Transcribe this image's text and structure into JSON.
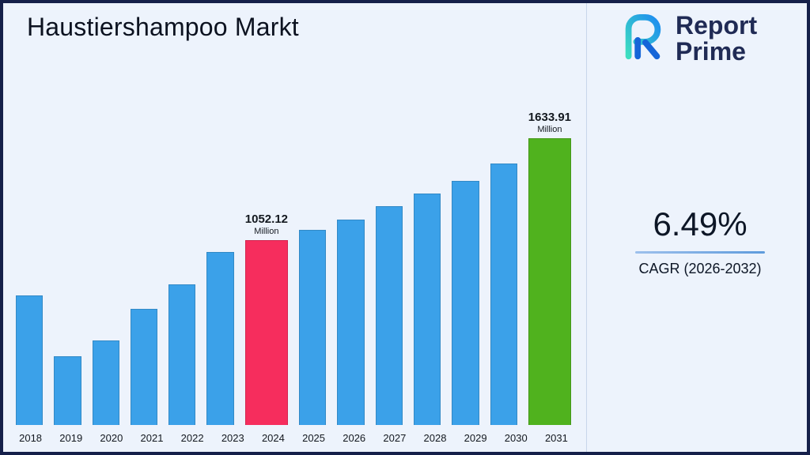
{
  "page": {
    "title": "Haustiershampoo Markt"
  },
  "logo": {
    "line1": "Report",
    "line2": "Prime",
    "icon": "report-prime-mark",
    "colors": {
      "teal": "#3ddec0",
      "blue": "#1e8cf0",
      "dark_blue": "#1565d8",
      "text": "#202b55"
    }
  },
  "stats": {
    "cagr_value": "6.49%",
    "cagr_label": "CAGR (2026-2032)"
  },
  "chart_data": {
    "type": "bar",
    "title": "Haustiershampoo Markt",
    "xlabel": "",
    "ylabel": "",
    "unit": "Million",
    "categories": [
      "2018",
      "2019",
      "2020",
      "2021",
      "2022",
      "2023",
      "2024",
      "2025",
      "2026",
      "2027",
      "2028",
      "2029",
      "2030",
      "2031"
    ],
    "values": [
      740,
      390,
      480,
      660,
      800,
      985,
      1052.12,
      1110,
      1170,
      1245,
      1320,
      1390,
      1490,
      1633.91
    ],
    "ylim": [
      0,
      1700
    ],
    "grid": false,
    "legend": "none",
    "colors": {
      "default": "#3BA1E9",
      "2024": "#F62D5D",
      "2031": "#50B21E"
    },
    "annotations": [
      {
        "category": "2024",
        "value": "1052.12",
        "unit": "Million"
      },
      {
        "category": "2031",
        "value": "1633.91",
        "unit": "Million"
      }
    ]
  }
}
